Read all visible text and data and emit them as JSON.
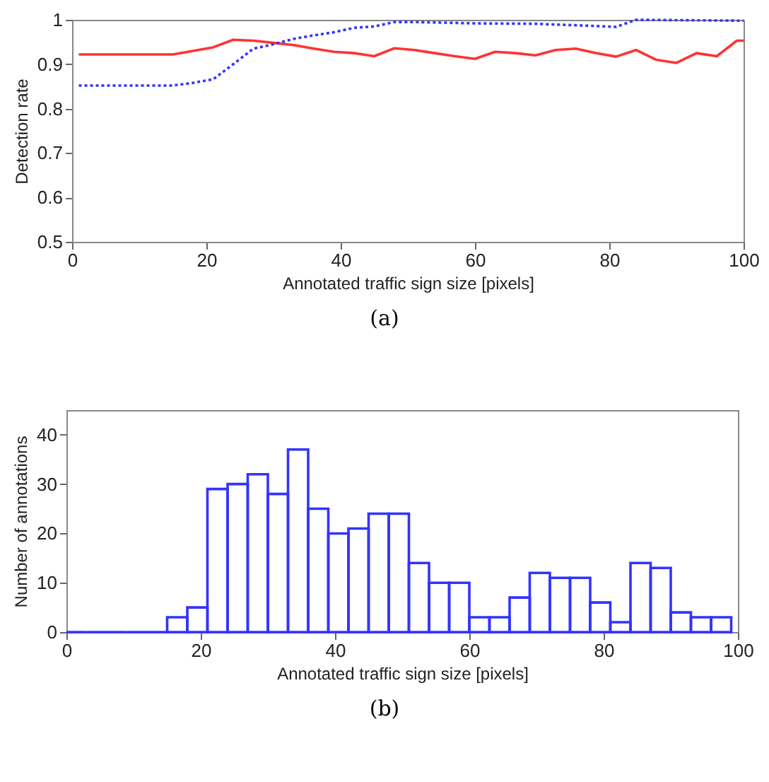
{
  "chart_data": [
    {
      "type": "line",
      "xlabel": "Annotated traffic sign size [pixels]",
      "ylabel": "Detection rate",
      "xlim": [
        0,
        100
      ],
      "ylim": [
        0.5,
        1
      ],
      "xticks": [
        0,
        20,
        40,
        60,
        80,
        100
      ],
      "yticks": [
        0.5,
        0.6,
        0.7,
        0.8,
        0.9,
        1
      ],
      "annotations": [
        "(a)"
      ],
      "series": [
        {
          "color": "#ff3333",
          "line_style": "solid",
          "x": [
            1,
            15,
            18,
            21,
            24,
            27,
            30,
            33,
            36,
            39,
            42,
            45,
            48,
            51,
            54,
            57,
            60,
            63,
            66,
            69,
            72,
            75,
            78,
            81,
            84,
            87,
            90,
            93,
            96,
            99,
            100
          ],
          "values": [
            0.922,
            0.922,
            0.93,
            0.938,
            0.955,
            0.953,
            0.948,
            0.943,
            0.935,
            0.928,
            0.925,
            0.918,
            0.936,
            0.932,
            0.925,
            0.918,
            0.912,
            0.928,
            0.925,
            0.92,
            0.932,
            0.935,
            0.925,
            0.917,
            0.932,
            0.91,
            0.903,
            0.925,
            0.918,
            0.953,
            0.953
          ]
        },
        {
          "color": "#3333ff",
          "line_style": "dotted",
          "x": [
            1,
            15,
            18,
            21,
            24,
            27,
            30,
            33,
            36,
            39,
            42,
            45,
            48,
            51,
            57,
            60,
            69,
            78,
            81,
            84,
            100
          ],
          "values": [
            0.852,
            0.852,
            0.858,
            0.866,
            0.9,
            0.935,
            0.945,
            0.957,
            0.965,
            0.972,
            0.982,
            0.985,
            0.995,
            0.995,
            0.993,
            0.992,
            0.991,
            0.986,
            0.984,
            1.0,
            0.998
          ]
        }
      ]
    },
    {
      "type": "histogram",
      "xlabel": "Annotated traffic sign size [pixels]",
      "ylabel": "Number of annotations",
      "xlim": [
        0,
        100
      ],
      "ylim": [
        0,
        45
      ],
      "xticks": [
        0,
        20,
        40,
        60,
        80,
        100
      ],
      "yticks": [
        0,
        10,
        20,
        30,
        40
      ],
      "color": "#3333ff",
      "annotations": [
        "(b)"
      ],
      "bins": [
        0,
        3,
        6,
        9,
        12,
        15,
        18,
        21,
        24,
        27,
        30,
        33,
        36,
        39,
        42,
        45,
        48,
        51,
        54,
        57,
        60,
        63,
        66,
        69,
        72,
        75,
        78,
        81,
        84,
        87,
        90,
        93,
        96,
        99
      ],
      "values": [
        0,
        0,
        0,
        0,
        0,
        3,
        5,
        29,
        30,
        32,
        28,
        37,
        25,
        20,
        21,
        24,
        24,
        14,
        10,
        10,
        3,
        3,
        7,
        12,
        11,
        11,
        6,
        2,
        14,
        13,
        4,
        3,
        3
      ]
    }
  ]
}
